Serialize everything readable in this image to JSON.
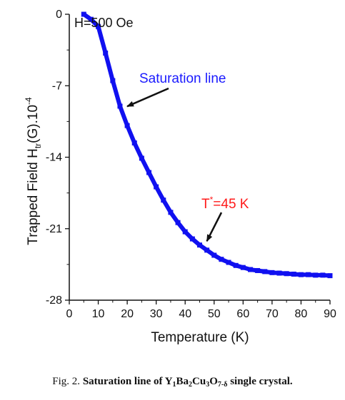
{
  "chart_data": {
    "type": "line",
    "field_label": "H=500 Oe",
    "xlabel": "Temperature (K)",
    "ylabel_main": "Trapped Field H",
    "ylabel_sub": "tr",
    "ylabel_unit": "(G).10",
    "ylabel_exp": "-4",
    "xlim": [
      0,
      90
    ],
    "ylim": [
      -28,
      0
    ],
    "x_ticks": [
      0,
      10,
      20,
      30,
      40,
      50,
      60,
      70,
      80,
      90
    ],
    "y_ticks": [
      0,
      -7,
      -14,
      -21,
      -28
    ],
    "grid": false,
    "series": [
      {
        "color": "#1010f0",
        "x": [
          5,
          7.5,
          10,
          12.5,
          15,
          17.5,
          20,
          22.5,
          25,
          27.5,
          30,
          32.5,
          35,
          37.5,
          40,
          42.5,
          45,
          47.5,
          50,
          52.5,
          55,
          57.5,
          60,
          62.5,
          65,
          67.5,
          70,
          72.5,
          75,
          77.5,
          80,
          82.5,
          85,
          87.5,
          90
        ],
        "y": [
          0,
          -0.5,
          -1.2,
          -3.8,
          -6.5,
          -9.0,
          -10.9,
          -12.6,
          -14.1,
          -15.5,
          -16.9,
          -18.2,
          -19.4,
          -20.4,
          -21.3,
          -22.0,
          -22.6,
          -23.1,
          -23.6,
          -24.0,
          -24.3,
          -24.6,
          -24.8,
          -25.0,
          -25.1,
          -25.2,
          -25.3,
          -25.35,
          -25.4,
          -25.45,
          -25.5,
          -25.5,
          -25.55,
          -25.55,
          -25.6
        ]
      }
    ],
    "annotations": [
      {
        "id": "saturation",
        "text": "Saturation line",
        "color": "#1a1aff",
        "point": [
          19,
          -9.3
        ]
      },
      {
        "id": "tstar",
        "text_main": "T",
        "text_sup": "*",
        "text_rest": "=45 K",
        "color": "#ff1a1a",
        "point": [
          47,
          -22.5
        ]
      }
    ]
  },
  "caption": {
    "prefix": "Fig. 2. ",
    "bold_text": "Saturation line of ",
    "formula": [
      {
        "t": "Y"
      },
      {
        "s": "1"
      },
      {
        "t": "Ba"
      },
      {
        "s": "2"
      },
      {
        "t": "Cu"
      },
      {
        "s": "3"
      },
      {
        "t": "O"
      },
      {
        "s": "7-δ"
      }
    ],
    "suffix": " single crystal."
  }
}
